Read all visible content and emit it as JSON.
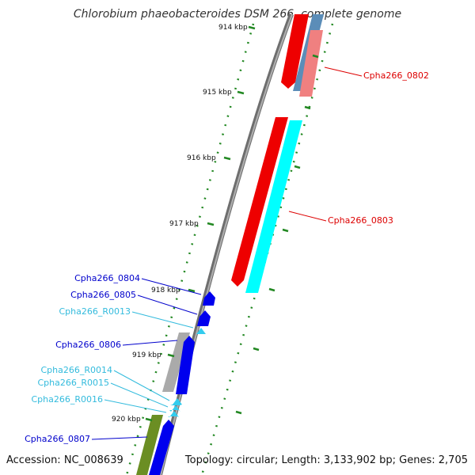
{
  "title": "Chlorobium phaeobacteroides DSM 266, complete genome",
  "accession": "Accession: NC_008639",
  "summary": "Topology: circular; Length: 3,133,902 bp; Genes: 2,705",
  "colors": {
    "forward_cds": "#0000ee",
    "reverse_cds": "#ee0000",
    "rna": "#33ccee",
    "backbone": "#8c8c8c",
    "tick": "#228822",
    "olive": "#6b8e23"
  },
  "ticks": [
    {
      "label": "914 kbp"
    },
    {
      "label": "915 kbp"
    },
    {
      "label": "916 kbp"
    },
    {
      "label": "917 kbp"
    },
    {
      "label": "918 kbp"
    },
    {
      "label": "919 kbp"
    },
    {
      "label": "920 kbp"
    }
  ],
  "gene_labels": [
    {
      "text": "Cpha266_0802",
      "color": "#dd0000"
    },
    {
      "text": "Cpha266_0803",
      "color": "#dd0000"
    },
    {
      "text": "Cpha266_0804",
      "color": "#0000cc"
    },
    {
      "text": "Cpha266_0805",
      "color": "#0000cc"
    },
    {
      "text": "Cpha266_R0013",
      "color": "#33bbdd"
    },
    {
      "text": "Cpha266_0806",
      "color": "#0000cc"
    },
    {
      "text": "Cpha266_R0014",
      "color": "#33bbdd"
    },
    {
      "text": "Cpha266_R0015",
      "color": "#33bbdd"
    },
    {
      "text": "Cpha266_R0016",
      "color": "#33bbdd"
    },
    {
      "text": "Cpha266_0807",
      "color": "#0000cc"
    }
  ]
}
